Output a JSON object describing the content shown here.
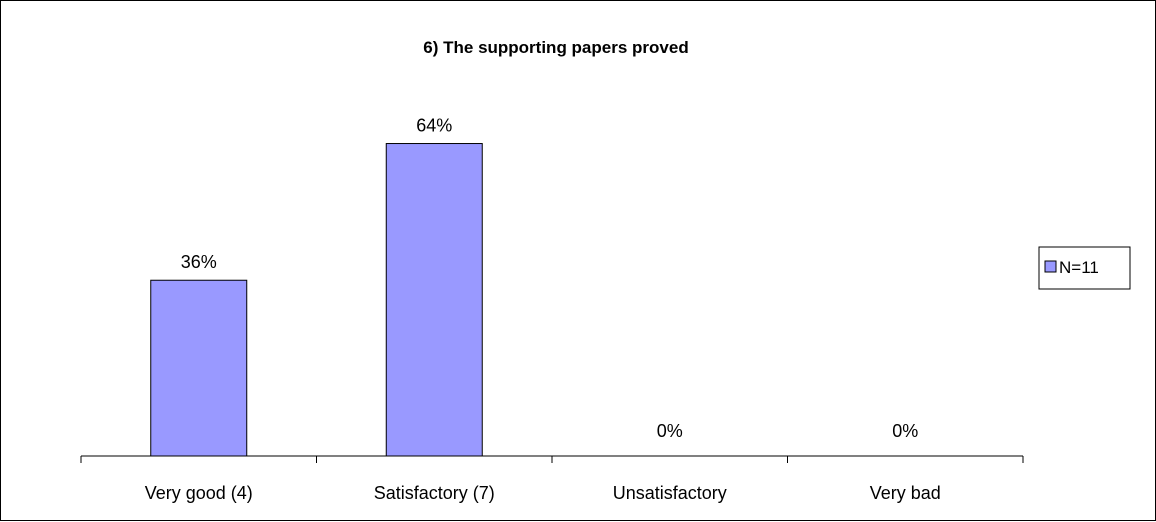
{
  "chart_data": {
    "type": "bar",
    "title": "6) The supporting papers proved",
    "categories": [
      "Very good (4)",
      "Satisfactory (7)",
      "Unsatisfactory",
      "Very bad"
    ],
    "series": [
      {
        "name": "N=11",
        "values": [
          36,
          64,
          0,
          0
        ],
        "data_labels": [
          "36%",
          "64%",
          "0%",
          "0%"
        ]
      }
    ],
    "ylim": [
      0,
      68
    ],
    "grid": false,
    "legend_position": "right",
    "colors": {
      "bar_fill": "#9999ff",
      "bar_stroke": "#000000"
    }
  }
}
